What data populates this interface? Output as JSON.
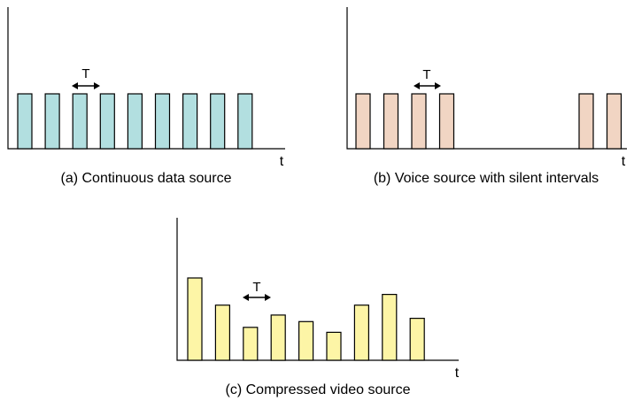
{
  "colors": {
    "continuous": "#b2dfe0",
    "voice": "#f1d5c3",
    "video": "#fdf5a6",
    "stroke": "#000000"
  },
  "panels": [
    {
      "id": "a",
      "caption": "(a) Continuous data source",
      "time_label": "t",
      "period_label": "T",
      "pulse_heights": [
        1,
        1,
        1,
        1,
        1,
        1,
        1,
        1,
        1
      ]
    },
    {
      "id": "b",
      "caption": "(b) Voice source with silent intervals",
      "time_label": "t",
      "period_label": "T",
      "pulse_heights": [
        1,
        1,
        1,
        1,
        0,
        0,
        0,
        0,
        1,
        1
      ]
    },
    {
      "id": "c",
      "caption": "(c) Compressed video source",
      "time_label": "t",
      "period_label": "T",
      "pulse_heights": [
        1,
        0.67,
        0.4,
        0.55,
        0.47,
        0.34,
        0.67,
        0.8,
        0.51
      ]
    }
  ]
}
